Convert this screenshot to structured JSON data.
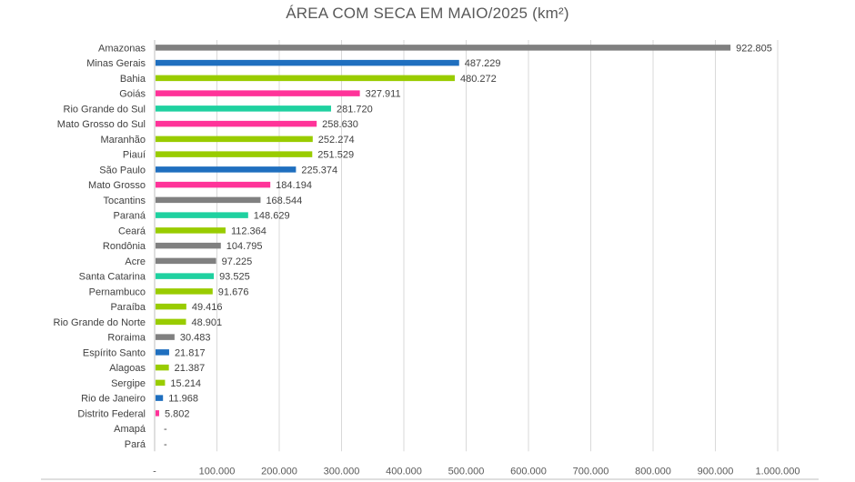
{
  "chart_data": {
    "type": "bar",
    "orientation": "horizontal",
    "title": "ÁREA COM SECA EM MAIO/2025 (km²)",
    "xlim": [
      0,
      1000000
    ],
    "x_ticks": [
      0,
      100000,
      200000,
      300000,
      400000,
      500000,
      600000,
      700000,
      800000,
      900000,
      1000000
    ],
    "x_tick_labels": [
      "-",
      "100.000",
      "200.000",
      "300.000",
      "400.000",
      "500.000",
      "600.000",
      "700.000",
      "800.000",
      "900.000",
      "1.000.000"
    ],
    "grid": true,
    "legend": "none",
    "colors": {
      "gray": "#808080",
      "blue": "#1f6fbf",
      "green": "#99cc00",
      "pink": "#ff3399",
      "teal": "#1fd1a0"
    },
    "bars": [
      {
        "category": "Amazonas",
        "value": 922805,
        "label": "922.805",
        "color": "gray"
      },
      {
        "category": "Minas Gerais",
        "value": 487229,
        "label": "487.229",
        "color": "blue"
      },
      {
        "category": "Bahia",
        "value": 480272,
        "label": "480.272",
        "color": "green"
      },
      {
        "category": "Goiás",
        "value": 327911,
        "label": "327.911",
        "color": "pink"
      },
      {
        "category": "Rio Grande do Sul",
        "value": 281720,
        "label": "281.720",
        "color": "teal"
      },
      {
        "category": "Mato Grosso do Sul",
        "value": 258630,
        "label": "258.630",
        "color": "pink"
      },
      {
        "category": "Maranhão",
        "value": 252274,
        "label": "252.274",
        "color": "green"
      },
      {
        "category": "Piauí",
        "value": 251529,
        "label": "251.529",
        "color": "green"
      },
      {
        "category": "São Paulo",
        "value": 225374,
        "label": "225.374",
        "color": "blue"
      },
      {
        "category": "Mato Grosso",
        "value": 184194,
        "label": "184.194",
        "color": "pink"
      },
      {
        "category": "Tocantins",
        "value": 168544,
        "label": "168.544",
        "color": "gray"
      },
      {
        "category": "Paraná",
        "value": 148629,
        "label": "148.629",
        "color": "teal"
      },
      {
        "category": "Ceará",
        "value": 112364,
        "label": "112.364",
        "color": "green"
      },
      {
        "category": "Rondônia",
        "value": 104795,
        "label": "104.795",
        "color": "gray"
      },
      {
        "category": "Acre",
        "value": 97225,
        "label": "97.225",
        "color": "gray"
      },
      {
        "category": "Santa Catarina",
        "value": 93525,
        "label": "93.525",
        "color": "teal"
      },
      {
        "category": "Pernambuco",
        "value": 91676,
        "label": "91.676",
        "color": "green"
      },
      {
        "category": "Paraíba",
        "value": 49416,
        "label": "49.416",
        "color": "green"
      },
      {
        "category": "Rio Grande do Norte",
        "value": 48901,
        "label": "48.901",
        "color": "green"
      },
      {
        "category": "Roraima",
        "value": 30483,
        "label": "30.483",
        "color": "gray"
      },
      {
        "category": "Espírito Santo",
        "value": 21817,
        "label": "21.817",
        "color": "blue"
      },
      {
        "category": "Alagoas",
        "value": 21387,
        "label": "21.387",
        "color": "green"
      },
      {
        "category": "Sergipe",
        "value": 15214,
        "label": "15.214",
        "color": "green"
      },
      {
        "category": "Rio de Janeiro",
        "value": 11968,
        "label": "11.968",
        "color": "blue"
      },
      {
        "category": "Distrito Federal",
        "value": 5802,
        "label": "5.802",
        "color": "pink"
      },
      {
        "category": "Amapá",
        "value": 0,
        "label": "-",
        "color": "gray"
      },
      {
        "category": "Pará",
        "value": 0,
        "label": "-",
        "color": "gray"
      }
    ]
  }
}
